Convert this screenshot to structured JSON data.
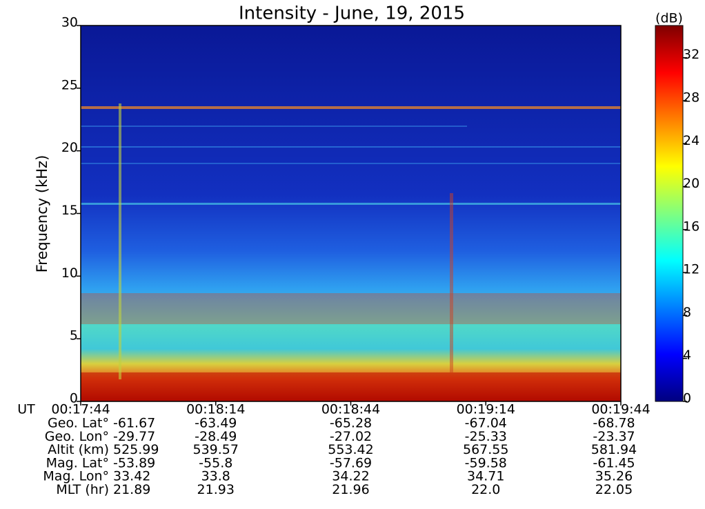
{
  "chart_data": {
    "type": "spectrogram",
    "title": "Intensity - June, 19, 2015",
    "y_label": "Frequency (kHz)",
    "ylim": [
      0,
      30
    ],
    "yticks": [
      0,
      5,
      10,
      15,
      20,
      25,
      30
    ],
    "x_label": "UT",
    "x": [
      "00:17:44",
      "00:18:14",
      "00:18:44",
      "00:19:14",
      "00:19:44"
    ],
    "colorbar": {
      "label": "(dB)",
      "lim": [
        0,
        35
      ],
      "ticks": [
        0,
        4,
        8,
        12,
        16,
        20,
        24,
        28,
        32
      ],
      "colormap": "jet"
    },
    "ephemeris": [
      {
        "label": "Geo. Lat°",
        "values": [
          -61.67,
          -63.49,
          -65.28,
          -67.04,
          -68.78
        ]
      },
      {
        "label": "Geo. Lon°",
        "values": [
          -29.77,
          -28.49,
          -27.02,
          -25.33,
          -23.37
        ]
      },
      {
        "label": "Altit (km)",
        "values": [
          525.99,
          539.57,
          553.42,
          567.55,
          581.94
        ]
      },
      {
        "label": "Mag. Lat°",
        "values": [
          -53.89,
          -55.8,
          -57.69,
          -59.58,
          -61.45
        ]
      },
      {
        "label": "Mag. Lon°",
        "values": [
          33.42,
          33.8,
          34.22,
          34.71,
          35.26
        ]
      },
      {
        "label": "MLT (hr)",
        "values": [
          21.89,
          21.93,
          21.96,
          22.0,
          22.05
        ],
        "value_labels": [
          "21.89",
          "21.93",
          "21.96",
          "22.0",
          "22.05"
        ]
      }
    ]
  }
}
